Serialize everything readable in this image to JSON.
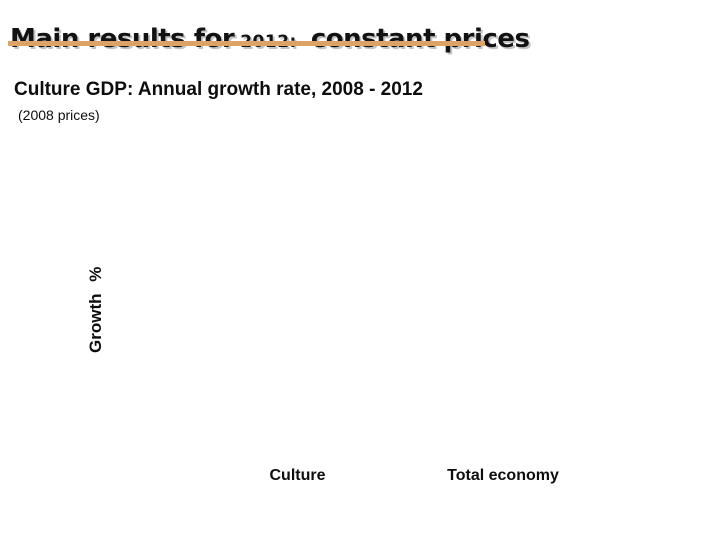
{
  "slide": {
    "title": {
      "lead": "Main results for",
      "year": "2012:",
      "tail": "constant prices"
    },
    "accent_color": "#DCA266",
    "background_color": "#FFFFFF",
    "text_color": "#0D0D0D"
  },
  "chart_data": {
    "type": "bar",
    "title": "Culture GDP: Annual growth rate, 2008 - 2012",
    "subtitle": "(2008 prices)",
    "xlabel": "",
    "ylabel": "Growth %",
    "categories": [
      "Culture",
      "Total economy"
    ],
    "series": [],
    "values": [],
    "grid": false,
    "legend": false,
    "plot_area_empty": true
  }
}
